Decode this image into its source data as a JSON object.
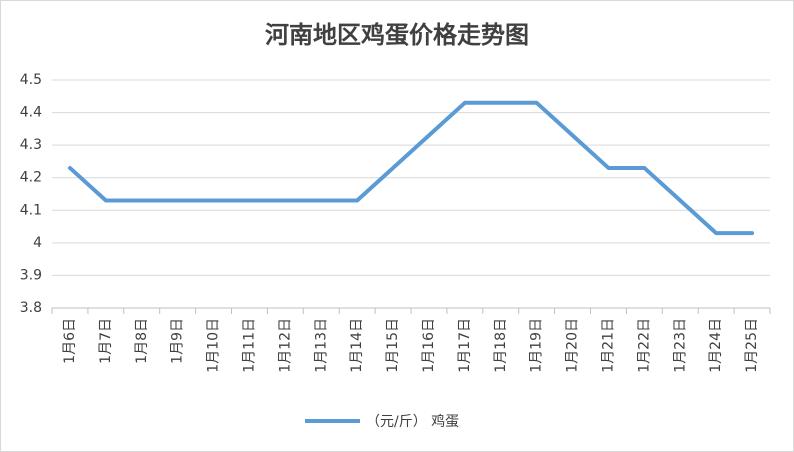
{
  "chart_data": {
    "type": "line",
    "title": "河南地区鸡蛋价格走势图",
    "categories": [
      "1月6日",
      "1月7日",
      "1月8日",
      "1月9日",
      "1月10日",
      "1月11日",
      "1月12日",
      "1月13日",
      "1月14日",
      "1月15日",
      "1月16日",
      "1月17日",
      "1月18日",
      "1月19日",
      "1月20日",
      "1月21日",
      "1月22日",
      "1月23日",
      "1月24日",
      "1月25日"
    ],
    "series": [
      {
        "name": "（元/斤） 鸡蛋",
        "color": "#5b9bd5",
        "values": [
          4.23,
          4.13,
          4.13,
          4.13,
          4.13,
          4.13,
          4.13,
          4.13,
          4.13,
          4.23,
          4.33,
          4.43,
          4.43,
          4.43,
          4.33,
          4.23,
          4.23,
          4.13,
          4.03,
          4.03
        ]
      }
    ],
    "ylim": [
      3.8,
      4.5
    ],
    "yticks": [
      3.8,
      3.9,
      4,
      4.1,
      4.2,
      4.3,
      4.4,
      4.5
    ],
    "grid": true,
    "legend": "bottom"
  }
}
